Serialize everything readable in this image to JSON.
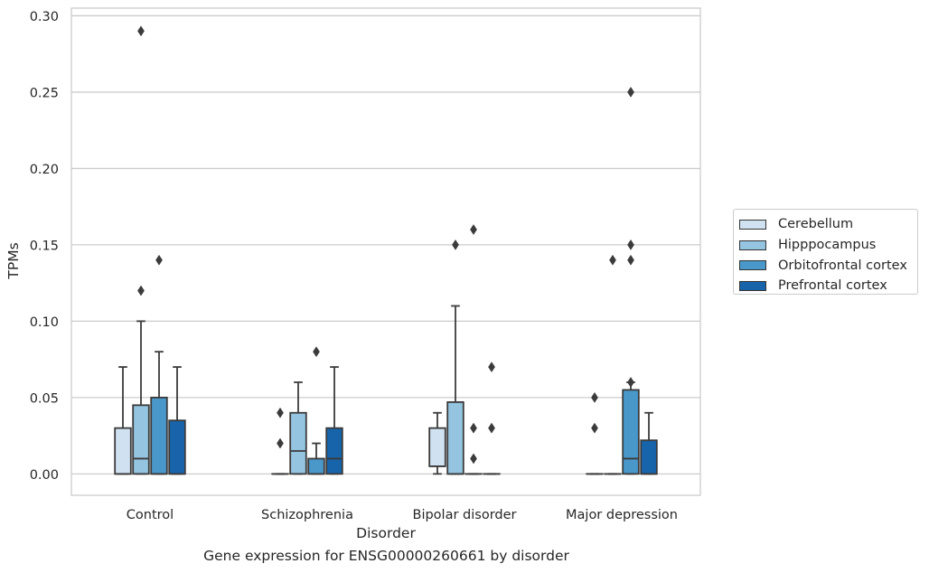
{
  "caption": "Gene expression for ENSG00000260661 by disorder",
  "chart_data": {
    "type": "box",
    "title": "",
    "xlabel": "Disorder",
    "ylabel": "TPMs",
    "ylim": [
      -0.014,
      0.305
    ],
    "yticks": [
      0.0,
      0.05,
      0.1,
      0.15,
      0.2,
      0.25,
      0.3
    ],
    "ytick_labels": [
      "0.00",
      "0.05",
      "0.10",
      "0.15",
      "0.20",
      "0.25",
      "0.30"
    ],
    "grid": "horizontal",
    "legend_position": "right",
    "categories": [
      "Control",
      "Schizophrenia",
      "Bipolar disorder",
      "Major depression"
    ],
    "series": [
      {
        "name": "Cerebellum",
        "color": "#d0e1f2",
        "boxes": [
          {
            "q1": 0.0,
            "median": 0.0,
            "q3": 0.03,
            "whislo": 0.0,
            "whishi": 0.07,
            "fliers": []
          },
          {
            "q1": 0.0,
            "median": 0.0,
            "q3": 0.0,
            "whislo": 0.0,
            "whishi": 0.0,
            "fliers": [
              0.02,
              0.04
            ]
          },
          {
            "q1": 0.005,
            "median": 0.005,
            "q3": 0.03,
            "whislo": 0.0,
            "whishi": 0.04,
            "fliers": []
          },
          {
            "q1": 0.0,
            "median": 0.0,
            "q3": 0.0,
            "whislo": 0.0,
            "whishi": 0.0,
            "fliers": [
              0.03,
              0.05
            ]
          }
        ]
      },
      {
        "name": "Hipppocampus",
        "color": "#94c4df",
        "boxes": [
          {
            "q1": 0.0,
            "median": 0.01,
            "q3": 0.045,
            "whislo": 0.0,
            "whishi": 0.1,
            "fliers": [
              0.12,
              0.29
            ]
          },
          {
            "q1": 0.0,
            "median": 0.015,
            "q3": 0.04,
            "whislo": 0.0,
            "whishi": 0.06,
            "fliers": []
          },
          {
            "q1": 0.0,
            "median": 0.0,
            "q3": 0.047,
            "whislo": 0.0,
            "whishi": 0.11,
            "fliers": [
              0.15
            ]
          },
          {
            "q1": 0.0,
            "median": 0.0,
            "q3": 0.0,
            "whislo": 0.0,
            "whishi": 0.0,
            "fliers": [
              0.14
            ]
          }
        ]
      },
      {
        "name": "Orbitofrontal cortex",
        "color": "#4a98c9",
        "boxes": [
          {
            "q1": 0.0,
            "median": 0.0,
            "q3": 0.05,
            "whislo": 0.0,
            "whishi": 0.08,
            "fliers": [
              0.14
            ]
          },
          {
            "q1": 0.0,
            "median": 0.0,
            "q3": 0.01,
            "whislo": 0.0,
            "whishi": 0.02,
            "fliers": [
              0.08
            ]
          },
          {
            "q1": 0.0,
            "median": 0.0,
            "q3": 0.0,
            "whislo": 0.0,
            "whishi": 0.0,
            "fliers": [
              0.01,
              0.03,
              0.16
            ]
          },
          {
            "q1": 0.0,
            "median": 0.01,
            "q3": 0.055,
            "whislo": 0.0,
            "whishi": 0.06,
            "fliers": [
              0.06,
              0.14,
              0.15,
              0.25
            ]
          }
        ]
      },
      {
        "name": "Prefrontal cortex",
        "color": "#1764ab",
        "boxes": [
          {
            "q1": 0.0,
            "median": 0.0,
            "q3": 0.035,
            "whislo": 0.0,
            "whishi": 0.07,
            "fliers": []
          },
          {
            "q1": 0.0,
            "median": 0.01,
            "q3": 0.03,
            "whislo": 0.0,
            "whishi": 0.07,
            "fliers": []
          },
          {
            "q1": 0.0,
            "median": 0.0,
            "q3": 0.0,
            "whislo": 0.0,
            "whishi": 0.0,
            "fliers": [
              0.03,
              0.07
            ]
          },
          {
            "q1": 0.0,
            "median": 0.0,
            "q3": 0.022,
            "whislo": 0.0,
            "whishi": 0.04,
            "fliers": []
          }
        ]
      }
    ]
  }
}
